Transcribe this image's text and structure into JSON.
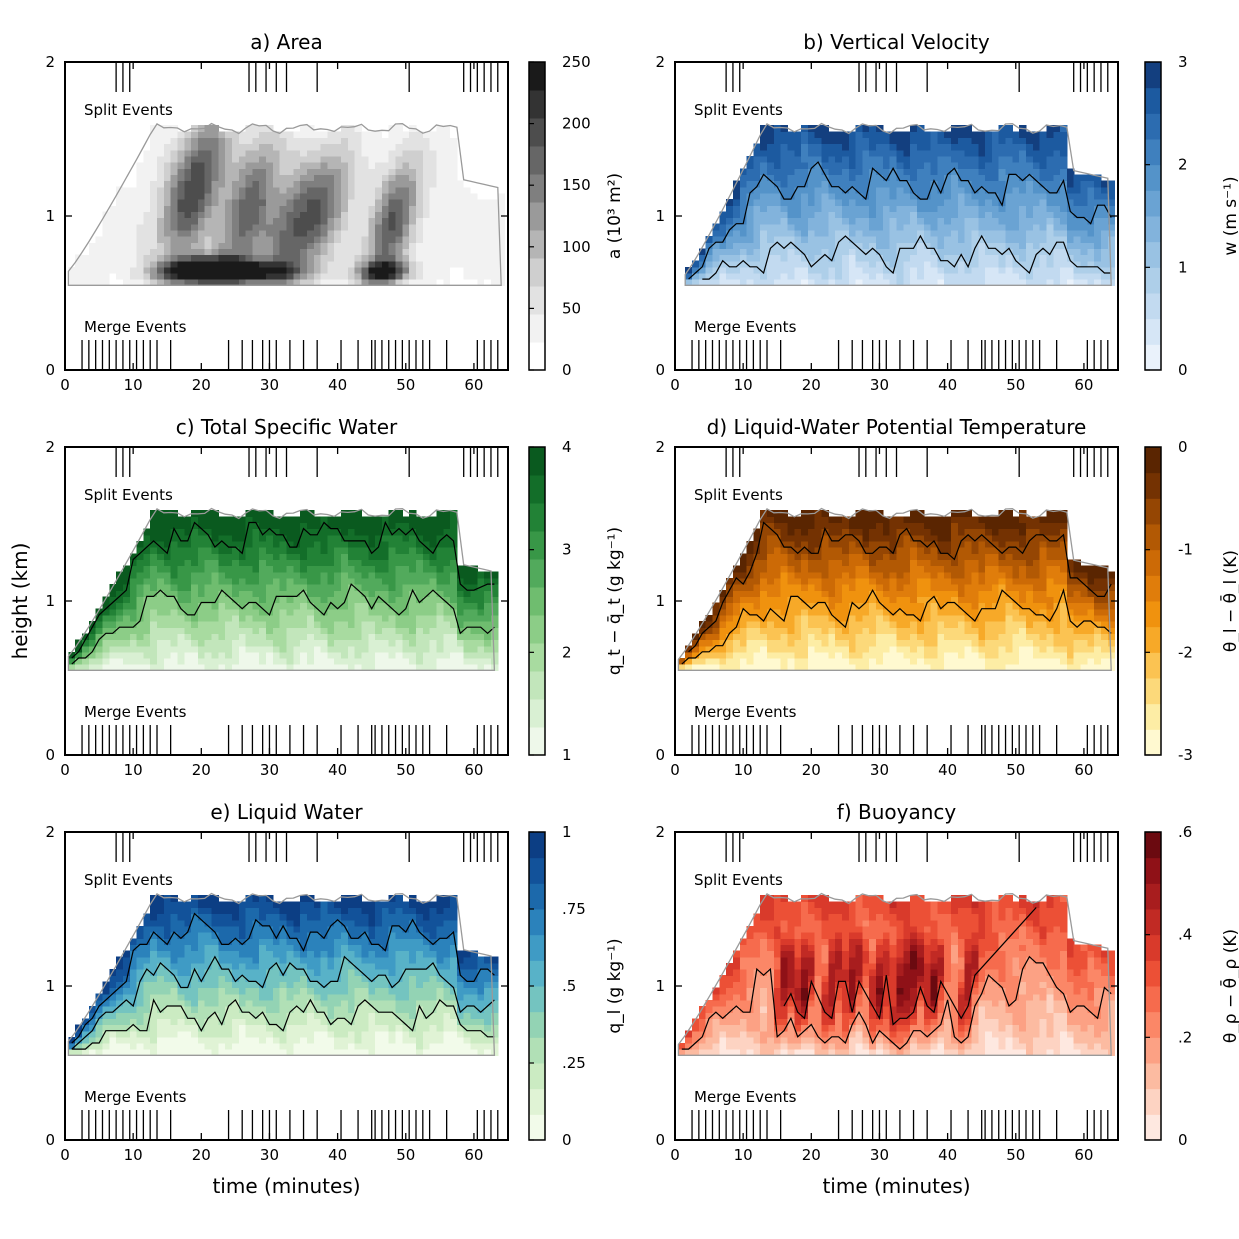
{
  "chart_data": [
    {
      "type": "heatmap",
      "panel": "a",
      "title": "a) Area",
      "xlabel": "",
      "ylabel": "",
      "xlim": [
        0,
        65
      ],
      "ylim": [
        0,
        2
      ],
      "xticks": [
        "0",
        "10",
        "20",
        "30",
        "40",
        "50",
        "60"
      ],
      "yticks": [
        "0",
        "1",
        "2"
      ],
      "annotations": {
        "split": "Split Events",
        "merge": "Merge Events"
      },
      "colorbar": {
        "label": "a (10³ m²)",
        "ticks": [
          "0",
          "50",
          "100",
          "150",
          "200",
          "250"
        ],
        "tick_values": [
          0,
          50,
          100,
          150,
          200,
          250
        ],
        "range": [
          0,
          250
        ]
      },
      "colors": [
        "#ffffff",
        "#f2f2f2",
        "#e2e2e2",
        "#cfcfcf",
        "#b5b5b5",
        "#9a9a9a",
        "#7f7f7f",
        "#666666",
        "#4d4d4d",
        "#333333",
        "#1a1a1a"
      ],
      "cloud": {
        "x0": 0.5,
        "x1": 64,
        "base": 0.55,
        "top_start": 0.62,
        "top_plateau": 1.55,
        "rise_end": 13,
        "plateau_end": 58,
        "end_top": 1.22
      },
      "contours": [
        0.9,
        1.3
      ],
      "features": [
        {
          "x": 20,
          "y": 0.65,
          "dx": 4,
          "dy": 0.06,
          "v": 240
        },
        {
          "x": 19,
          "y": 1.2,
          "dx": 2.8,
          "dy": 0.35,
          "v": 170
        },
        {
          "x": 27,
          "y": 1.05,
          "dx": 2.5,
          "dy": 0.35,
          "v": 140
        },
        {
          "x": 33,
          "y": 0.9,
          "dx": 2.5,
          "dy": 0.3,
          "v": 120
        },
        {
          "x": 38,
          "y": 1.05,
          "dx": 2.5,
          "dy": 0.3,
          "v": 110
        },
        {
          "x": 48,
          "y": 0.95,
          "dx": 2.2,
          "dy": 0.3,
          "v": 150
        },
        {
          "x": 47,
          "y": 0.64,
          "dx": 2.5,
          "dy": 0.05,
          "v": 190
        },
        {
          "x": 26,
          "y": 0.64,
          "dx": 6,
          "dy": 0.05,
          "v": 180
        }
      ],
      "base_value": 35
    },
    {
      "type": "heatmap",
      "panel": "b",
      "title": "b) Vertical Velocity",
      "xlabel": "",
      "ylabel": "",
      "xlim": [
        0,
        65
      ],
      "ylim": [
        0,
        2
      ],
      "xticks": [
        "0",
        "10",
        "20",
        "30",
        "40",
        "50",
        "60"
      ],
      "yticks": [
        "0",
        "1",
        "2"
      ],
      "annotations": {
        "split": "Split Events",
        "merge": "Merge Events"
      },
      "colorbar": {
        "label": "w (m s⁻¹)",
        "ticks": [
          "0",
          "1",
          "2",
          "3"
        ],
        "tick_values": [
          0,
          1,
          2,
          3
        ],
        "range": [
          0,
          3
        ]
      },
      "colors": [
        "#eaf2fb",
        "#d6e6f6",
        "#c2daf0",
        "#aecfe9",
        "#99c2e3",
        "#82b3dc",
        "#6aa3d3",
        "#5493c9",
        "#3f80be",
        "#2c6cb0",
        "#1c5aa0",
        "#133f7f"
      ],
      "cloud": {
        "x0": 1.5,
        "x1": 64,
        "base": 0.55,
        "top_start": 0.6,
        "top_plateau": 1.55,
        "rise_end": 13,
        "plateau_end": 58,
        "end_top": 1.28
      },
      "contours": [
        0.9,
        2.0
      ],
      "vertical_profile": {
        "bottom": 0.4,
        "top": 2.8
      },
      "base_value": 1.2
    },
    {
      "type": "heatmap",
      "panel": "c",
      "title": "c) Total Specific Water",
      "xlabel": "",
      "ylabel": "height (km)",
      "xlim": [
        0,
        65
      ],
      "ylim": [
        0,
        2
      ],
      "xticks": [
        "0",
        "10",
        "20",
        "30",
        "40",
        "50",
        "60"
      ],
      "yticks": [
        "0",
        "1",
        "2"
      ],
      "annotations": {
        "split": "Split Events",
        "merge": "Merge Events"
      },
      "colorbar": {
        "label": "q_t − q̄_t (g kg⁻¹)",
        "ticks": [
          "1",
          "2",
          "3",
          "4"
        ],
        "tick_values": [
          1,
          2,
          3,
          4
        ],
        "range": [
          1,
          4
        ]
      },
      "colors": [
        "#eef8ea",
        "#d9f0d3",
        "#c2e6bb",
        "#a8dba0",
        "#8ccd87",
        "#6fbd6f",
        "#52aa5c",
        "#389747",
        "#228236",
        "#136e29",
        "#0a5a1f"
      ],
      "cloud": {
        "x0": 0.5,
        "x1": 63,
        "base": 0.55,
        "top_start": 0.62,
        "top_plateau": 1.55,
        "rise_end": 13,
        "plateau_end": 58,
        "end_top": 1.22
      },
      "contours": [
        2.4,
        3.6
      ],
      "vertical_profile": {
        "bottom": 1.1,
        "top": 4.0
      },
      "base_value": 2.5
    },
    {
      "type": "heatmap",
      "panel": "d",
      "title": "d) Liquid-Water Potential Temperature",
      "xlabel": "",
      "ylabel": "",
      "xlim": [
        0,
        65
      ],
      "ylim": [
        0,
        2
      ],
      "xticks": [
        "0",
        "10",
        "20",
        "30",
        "40",
        "50",
        "60"
      ],
      "yticks": [
        "0",
        "1",
        "2"
      ],
      "annotations": {
        "split": "Split Events",
        "merge": "Merge Events"
      },
      "colorbar": {
        "label": "θ_l − θ̄_l (K)",
        "ticks": [
          "-3",
          "-2",
          "-1",
          "0"
        ],
        "tick_values": [
          -3,
          -2,
          -1,
          0
        ],
        "range": [
          -3,
          0
        ]
      },
      "colors": [
        "#fff9d0",
        "#fdeda5",
        "#fcd97a",
        "#fbc352",
        "#f7a928",
        "#f0920e",
        "#e07d0b",
        "#cc6a06",
        "#b25904",
        "#954603",
        "#743202",
        "#5a2501"
      ],
      "cloud": {
        "x0": 0.5,
        "x1": 64,
        "base": 0.55,
        "top_start": 0.6,
        "top_plateau": 1.55,
        "rise_end": 13,
        "plateau_end": 58,
        "end_top": 1.25
      },
      "contours": [
        -1.2,
        -2.4
      ],
      "vertical_profile": {
        "bottom": -0.05,
        "top": -2.9
      },
      "base_value": -1.5
    },
    {
      "type": "heatmap",
      "panel": "e",
      "title": "e) Liquid Water",
      "xlabel": "time (minutes)",
      "ylabel": "",
      "xlim": [
        0,
        65
      ],
      "ylim": [
        0,
        2
      ],
      "xticks": [
        "0",
        "10",
        "20",
        "30",
        "40",
        "50",
        "60"
      ],
      "yticks": [
        "0",
        "1",
        "2"
      ],
      "annotations": {
        "split": "Split Events",
        "merge": "Merge Events"
      },
      "colorbar": {
        "label": "q_l (g kg⁻¹)",
        "ticks": [
          "0",
          ".25",
          ".5",
          ".75",
          "1"
        ],
        "tick_values": [
          0,
          0.25,
          0.5,
          0.75,
          1
        ],
        "range": [
          0,
          1
        ]
      },
      "colors": [
        "#f2fbea",
        "#e0f3d5",
        "#cbebc2",
        "#b1e0b6",
        "#93d3b4",
        "#74c4c0",
        "#58b2c8",
        "#3f9bc5",
        "#2b82bb",
        "#1c69ab",
        "#12529a",
        "#0c3e84"
      ],
      "cloud": {
        "x0": 0.5,
        "x1": 63,
        "base": 0.55,
        "top_start": 0.62,
        "top_plateau": 1.55,
        "rise_end": 13,
        "plateau_end": 58,
        "end_top": 1.22
      },
      "contours": [
        0.25,
        0.5,
        0.75
      ],
      "vertical_profile": {
        "bottom": 0.0,
        "top": 0.95
      },
      "base_value": 0.5
    },
    {
      "type": "heatmap",
      "panel": "f",
      "title": "f) Buoyancy",
      "xlabel": "time (minutes)",
      "ylabel": "",
      "xlim": [
        0,
        65
      ],
      "ylim": [
        0,
        2
      ],
      "xticks": [
        "0",
        "10",
        "20",
        "30",
        "40",
        "50",
        "60"
      ],
      "yticks": [
        "0",
        "1",
        "2"
      ],
      "annotations": {
        "split": "Split Events",
        "merge": "Merge Events"
      },
      "colorbar": {
        "label": "θ_ρ − θ̄_ρ (K)",
        "ticks": [
          "0",
          ".2",
          ".4",
          ".6"
        ],
        "tick_values": [
          0,
          0.2,
          0.4,
          0.6
        ],
        "range": [
          0,
          0.6
        ]
      },
      "colors": [
        "#fee8e0",
        "#fdd3c2",
        "#fcbba1",
        "#fca184",
        "#fb8767",
        "#f66b4d",
        "#ec5036",
        "#d93a2b",
        "#c12a24",
        "#a81d1e",
        "#8f1117",
        "#6b0a10"
      ],
      "cloud": {
        "x0": 0.5,
        "x1": 64,
        "base": 0.55,
        "top_start": 0.6,
        "top_plateau": 1.55,
        "rise_end": 13,
        "plateau_end": 58,
        "end_top": 1.28
      },
      "contours": [
        0.2,
        0.4
      ],
      "vertical_profile": {
        "bottom": 0.05,
        "top": 0.35
      },
      "streaks": [
        16,
        19,
        23,
        26,
        30,
        33,
        35,
        38,
        43
      ],
      "base_value": 0.3
    }
  ],
  "split_events": [
    7.5,
    8.5,
    9.5,
    27,
    28,
    29.5,
    31,
    32.5,
    37,
    50.5,
    58.5,
    59.5,
    60.5,
    61.5,
    62.5,
    63.5
  ],
  "merge_events": [
    2.5,
    3.5,
    4.5,
    5.5,
    6.5,
    7.5,
    8.5,
    9.5,
    10.5,
    11.5,
    12.5,
    13.5,
    15.5,
    24,
    26,
    27.5,
    29,
    30,
    31,
    33,
    35,
    37,
    40.5,
    43,
    45,
    45.5,
    46.5,
    47.5,
    48.5,
    49.5,
    50.5,
    51.5,
    52.5,
    53.5,
    56,
    60.5,
    61.5,
    62.5,
    63.5
  ]
}
